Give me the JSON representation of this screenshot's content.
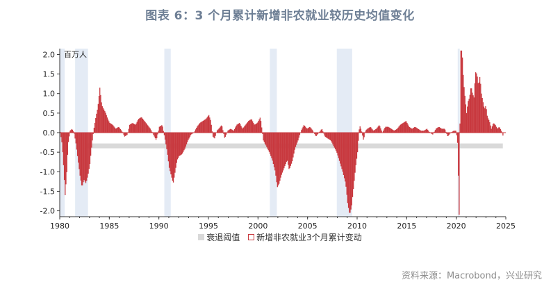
{
  "title": "图表 6：3 个月累计新增非农就业较历史均值变化",
  "source": "资料来源：Macrobond，兴业研究",
  "chart_data": {
    "type": "bar",
    "unit_label": "百万人",
    "xlim": [
      1980,
      2025
    ],
    "ylim": [
      -2.15,
      2.15
    ],
    "x_ticks": [
      1980,
      1985,
      1990,
      1995,
      2000,
      2005,
      2010,
      2015,
      2020,
      2025
    ],
    "y_ticks": [
      -2.0,
      -1.5,
      -1.0,
      -0.5,
      0.0,
      0.5,
      1.0,
      1.5,
      2.0
    ],
    "y_tick_labels": [
      "-2.0",
      "-1.5",
      "-1.0",
      "-0.5",
      "0.0",
      "0.5",
      "1.0",
      "1.5",
      "2.0"
    ],
    "threshold": {
      "name": "衰退阈值",
      "value": -0.33,
      "color": "#d9d9d9"
    },
    "recessions": [
      [
        1980.0,
        1980.5
      ],
      [
        1981.55,
        1982.85
      ],
      [
        1990.55,
        1991.2
      ],
      [
        2001.2,
        2001.9
      ],
      [
        2007.95,
        2009.5
      ],
      [
        2020.15,
        2020.35
      ]
    ],
    "series": [
      {
        "name": "新增非农就业3个月累计变动",
        "color": "#c8383e",
        "points": [
          [
            1980.0,
            0.02
          ],
          [
            1980.2,
            -0.3
          ],
          [
            1980.35,
            -0.9
          ],
          [
            1980.5,
            -1.6
          ],
          [
            1980.65,
            -1.1
          ],
          [
            1980.8,
            -0.3
          ],
          [
            1981.0,
            0.05
          ],
          [
            1981.2,
            0.1
          ],
          [
            1981.4,
            0.0
          ],
          [
            1981.6,
            -0.3
          ],
          [
            1981.8,
            -0.7
          ],
          [
            1982.0,
            -1.1
          ],
          [
            1982.2,
            -1.4
          ],
          [
            1982.4,
            -1.2
          ],
          [
            1982.6,
            -1.3
          ],
          [
            1982.8,
            -1.1
          ],
          [
            1983.0,
            -0.8
          ],
          [
            1983.2,
            -0.3
          ],
          [
            1983.4,
            0.1
          ],
          [
            1983.6,
            0.4
          ],
          [
            1983.8,
            0.65
          ],
          [
            1984.0,
            1.15
          ],
          [
            1984.2,
            0.7
          ],
          [
            1984.4,
            0.6
          ],
          [
            1984.6,
            0.5
          ],
          [
            1984.8,
            0.35
          ],
          [
            1985.0,
            0.25
          ],
          [
            1985.3,
            0.2
          ],
          [
            1985.6,
            0.1
          ],
          [
            1985.9,
            0.15
          ],
          [
            1986.2,
            0.05
          ],
          [
            1986.5,
            -0.1
          ],
          [
            1986.8,
            -0.05
          ],
          [
            1987.0,
            0.2
          ],
          [
            1987.3,
            0.25
          ],
          [
            1987.6,
            0.2
          ],
          [
            1987.9,
            0.35
          ],
          [
            1988.2,
            0.4
          ],
          [
            1988.5,
            0.3
          ],
          [
            1988.8,
            0.2
          ],
          [
            1989.1,
            0.1
          ],
          [
            1989.4,
            -0.05
          ],
          [
            1989.7,
            -0.2
          ],
          [
            1990.0,
            0.15
          ],
          [
            1990.3,
            0.2
          ],
          [
            1990.6,
            -0.2
          ],
          [
            1990.8,
            -0.5
          ],
          [
            1991.0,
            -0.9
          ],
          [
            1991.2,
            -1.1
          ],
          [
            1991.4,
            -1.3
          ],
          [
            1991.6,
            -1.0
          ],
          [
            1991.8,
            -0.7
          ],
          [
            1992.0,
            -0.6
          ],
          [
            1992.3,
            -0.55
          ],
          [
            1992.6,
            -0.4
          ],
          [
            1992.9,
            -0.2
          ],
          [
            1993.2,
            -0.05
          ],
          [
            1993.5,
            0.0
          ],
          [
            1993.8,
            0.15
          ],
          [
            1994.1,
            0.25
          ],
          [
            1994.4,
            0.3
          ],
          [
            1994.7,
            0.35
          ],
          [
            1995.0,
            0.45
          ],
          [
            1995.2,
            0.3
          ],
          [
            1995.4,
            -0.1
          ],
          [
            1995.6,
            -0.15
          ],
          [
            1995.8,
            0.05
          ],
          [
            1996.0,
            0.1
          ],
          [
            1996.3,
            0.2
          ],
          [
            1996.6,
            -0.15
          ],
          [
            1996.9,
            0.05
          ],
          [
            1997.2,
            0.1
          ],
          [
            1997.5,
            0.05
          ],
          [
            1997.8,
            0.2
          ],
          [
            1998.1,
            0.25
          ],
          [
            1998.4,
            0.1
          ],
          [
            1998.7,
            0.2
          ],
          [
            1999.0,
            0.3
          ],
          [
            1999.3,
            0.35
          ],
          [
            1999.6,
            0.2
          ],
          [
            1999.9,
            0.25
          ],
          [
            2000.2,
            0.4
          ],
          [
            2000.5,
            -0.2
          ],
          [
            2000.8,
            -0.35
          ],
          [
            2001.1,
            -0.5
          ],
          [
            2001.4,
            -0.7
          ],
          [
            2001.7,
            -1.0
          ],
          [
            2001.9,
            -1.4
          ],
          [
            2002.1,
            -1.3
          ],
          [
            2002.3,
            -1.1
          ],
          [
            2002.6,
            -0.9
          ],
          [
            2002.9,
            -0.7
          ],
          [
            2003.1,
            -0.95
          ],
          [
            2003.4,
            -0.75
          ],
          [
            2003.7,
            -0.4
          ],
          [
            2004.0,
            -0.2
          ],
          [
            2004.3,
            0.05
          ],
          [
            2004.6,
            0.2
          ],
          [
            2004.9,
            0.1
          ],
          [
            2005.2,
            0.15
          ],
          [
            2005.5,
            0.05
          ],
          [
            2005.8,
            -0.1
          ],
          [
            2006.1,
            0.0
          ],
          [
            2006.4,
            0.1
          ],
          [
            2006.7,
            -0.1
          ],
          [
            2007.0,
            -0.15
          ],
          [
            2007.3,
            -0.2
          ],
          [
            2007.6,
            -0.35
          ],
          [
            2007.9,
            -0.5
          ],
          [
            2008.2,
            -0.75
          ],
          [
            2008.5,
            -1.0
          ],
          [
            2008.8,
            -1.3
          ],
          [
            2009.0,
            -1.8
          ],
          [
            2009.2,
            -2.1
          ],
          [
            2009.4,
            -1.9
          ],
          [
            2009.6,
            -1.4
          ],
          [
            2009.8,
            -0.9
          ],
          [
            2010.0,
            -0.5
          ],
          [
            2010.2,
            0.2
          ],
          [
            2010.4,
            0.05
          ],
          [
            2010.6,
            -0.2
          ],
          [
            2010.8,
            0.05
          ],
          [
            2011.0,
            0.1
          ],
          [
            2011.3,
            0.15
          ],
          [
            2011.6,
            0.05
          ],
          [
            2011.9,
            0.1
          ],
          [
            2012.2,
            0.2
          ],
          [
            2012.5,
            0.0
          ],
          [
            2012.8,
            0.15
          ],
          [
            2013.1,
            0.15
          ],
          [
            2013.4,
            0.1
          ],
          [
            2013.7,
            0.05
          ],
          [
            2014.0,
            0.1
          ],
          [
            2014.3,
            0.2
          ],
          [
            2014.6,
            0.25
          ],
          [
            2014.9,
            0.3
          ],
          [
            2015.2,
            0.15
          ],
          [
            2015.5,
            0.1
          ],
          [
            2015.8,
            0.15
          ],
          [
            2016.1,
            0.1
          ],
          [
            2016.4,
            0.05
          ],
          [
            2016.7,
            0.05
          ],
          [
            2017.0,
            0.1
          ],
          [
            2017.3,
            0.0
          ],
          [
            2017.6,
            -0.05
          ],
          [
            2017.9,
            0.1
          ],
          [
            2018.2,
            0.15
          ],
          [
            2018.5,
            0.1
          ],
          [
            2018.8,
            0.1
          ],
          [
            2019.1,
            -0.1
          ],
          [
            2019.4,
            0.0
          ],
          [
            2019.7,
            0.05
          ],
          [
            2019.95,
            0.05
          ],
          [
            2020.1,
            -0.3
          ],
          [
            2020.25,
            -2.1
          ],
          [
            2020.4,
            2.1
          ],
          [
            2020.55,
            2.1
          ],
          [
            2020.7,
            1.3
          ],
          [
            2020.85,
            0.9
          ],
          [
            2021.0,
            0.5
          ],
          [
            2021.15,
            0.8
          ],
          [
            2021.3,
            0.9
          ],
          [
            2021.45,
            1.2
          ],
          [
            2021.6,
            1.0
          ],
          [
            2021.75,
            0.9
          ],
          [
            2021.9,
            1.55
          ],
          [
            2022.05,
            1.5
          ],
          [
            2022.2,
            1.2
          ],
          [
            2022.35,
            1.45
          ],
          [
            2022.5,
            1.0
          ],
          [
            2022.65,
            0.8
          ],
          [
            2022.8,
            0.6
          ],
          [
            2022.95,
            0.7
          ],
          [
            2023.1,
            0.4
          ],
          [
            2023.3,
            0.3
          ],
          [
            2023.5,
            0.1
          ],
          [
            2023.7,
            0.25
          ],
          [
            2023.9,
            0.2
          ],
          [
            2024.1,
            0.1
          ],
          [
            2024.3,
            0.15
          ],
          [
            2024.5,
            0.05
          ],
          [
            2024.7,
            -0.1
          ]
        ]
      }
    ]
  }
}
